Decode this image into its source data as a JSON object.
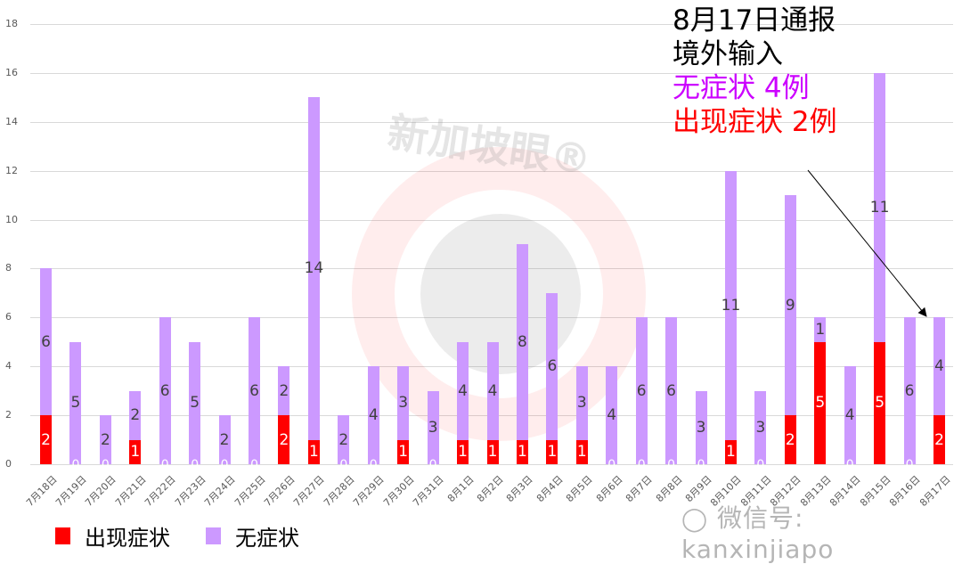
{
  "chart_data": {
    "type": "bar",
    "stacked": true,
    "title": "",
    "xlabel": "",
    "ylabel": "",
    "ylim": [
      0,
      18
    ],
    "yticks": [
      0,
      2,
      4,
      6,
      8,
      10,
      12,
      14,
      16,
      18
    ],
    "grid": true,
    "legend_position": "bottom-left",
    "categories": [
      "7月18日",
      "7月19日",
      "7月20日",
      "7月21日",
      "7月22日",
      "7月23日",
      "7月24日",
      "7月25日",
      "7月26日",
      "7月27日",
      "7月28日",
      "7月29日",
      "7月30日",
      "7月31日",
      "8月1日",
      "8月2日",
      "8月3日",
      "8月4日",
      "8月5日",
      "8月6日",
      "8月7日",
      "8月8日",
      "8月9日",
      "8月10日",
      "8月11日",
      "8月12日",
      "8月13日",
      "8月14日",
      "8月15日",
      "8月16日",
      "8月17日"
    ],
    "series": [
      {
        "name": "出现症状",
        "color": "#ff0000",
        "values": [
          2,
          0,
          0,
          1,
          0,
          0,
          0,
          0,
          2,
          1,
          0,
          0,
          1,
          0,
          1,
          1,
          1,
          1,
          1,
          0,
          0,
          0,
          0,
          1,
          0,
          2,
          5,
          0,
          5,
          0,
          2
        ]
      },
      {
        "name": "无症状",
        "color": "#cc99ff",
        "values": [
          6,
          5,
          2,
          2,
          6,
          5,
          2,
          6,
          2,
          14,
          2,
          4,
          3,
          3,
          4,
          4,
          8,
          6,
          3,
          4,
          6,
          6,
          3,
          11,
          3,
          9,
          1,
          4,
          11,
          6,
          4
        ]
      }
    ],
    "annotations": [
      {
        "lines": [
          "8月17日通报",
          "境外输入",
          "无症状 4例",
          "出现症状 2例"
        ],
        "arrow_to": "8月17日"
      }
    ]
  },
  "annotation": {
    "line1": "8月17日通报",
    "line2": "境外输入",
    "line3": "无症状 4例",
    "line4": "出现症状 2例",
    "colors": {
      "line1": "#000000",
      "line2": "#000000",
      "line3": "#cc00ff",
      "line4": "#ff0000"
    }
  },
  "legend": {
    "items": [
      {
        "label": "出现症状",
        "color": "#ff0000"
      },
      {
        "label": "无症状",
        "color": "#cc99ff"
      }
    ]
  },
  "watermark": {
    "brand": "新加坡眼®",
    "wechat": "微信号: kanxinjiapo"
  }
}
